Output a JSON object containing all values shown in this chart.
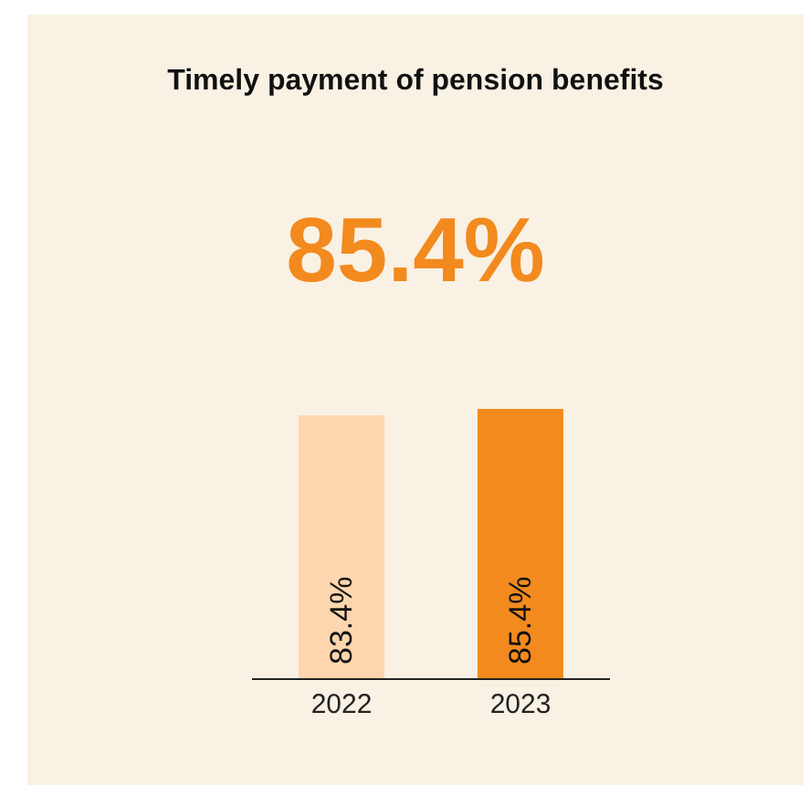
{
  "chart_data": {
    "type": "bar",
    "title": "Timely payment of pension benefits",
    "subtitle": "85.4%",
    "categories": [
      "2022",
      "2023"
    ],
    "values": [
      83.4,
      85.4
    ],
    "colors": [
      "#fdd5ae",
      "#f28a1e"
    ],
    "value_labels": [
      "83.4%",
      "85.4%"
    ],
    "grid": false,
    "legend": false
  }
}
